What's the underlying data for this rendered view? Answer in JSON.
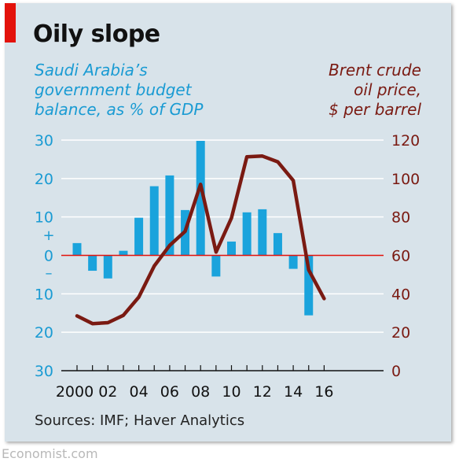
{
  "title": "Oily slope",
  "left_axis_label": "Saudi Arabia’s\ngovernment budget\nbalance, as % of GDP",
  "right_axis_label": "Brent crude\noil price,\n$ per barrel",
  "source": "Sources: IMF; Haver Analytics",
  "footer": "Economist.com",
  "colors": {
    "bar": "#1aa3dc",
    "line": "#7a1a12",
    "left_axis": "#1a9bd3",
    "right_axis": "#7a1a12",
    "zero_line": "#e3120b",
    "grid": "#ffffff",
    "background": "#d8e3ea"
  },
  "chart_data": {
    "type": "bar",
    "categories": [
      "2000",
      "2001",
      "2002",
      "2003",
      "2004",
      "2005",
      "2006",
      "2007",
      "2008",
      "2009",
      "2010",
      "2011",
      "2012",
      "2013",
      "2014",
      "2015",
      "2016"
    ],
    "x_tick_labels": [
      "2000",
      "02",
      "04",
      "06",
      "08",
      "10",
      "12",
      "14",
      "16"
    ],
    "series": [
      {
        "type": "bar",
        "axis": "left",
        "values": [
          3.2,
          -4,
          -6,
          1.2,
          9.8,
          18,
          20.8,
          11.8,
          29.8,
          -5.5,
          3.6,
          11.2,
          12,
          5.8,
          -3.5,
          -15.6,
          0
        ]
      },
      {
        "type": "line",
        "axis": "right",
        "x": [
          2000,
          2001,
          2002,
          2003,
          2004,
          2005,
          2006,
          2007,
          2008,
          2009,
          2010,
          2011,
          2012,
          2013,
          2014,
          2015,
          2016
        ],
        "values": [
          28.5,
          24.5,
          25,
          28.8,
          38.3,
          54.5,
          65.2,
          72.5,
          97,
          61.7,
          79.5,
          111.3,
          111.7,
          108.7,
          99,
          52.4,
          37.5
        ]
      }
    ],
    "left_axis": {
      "ticks": [
        30,
        20,
        10,
        0,
        10,
        20,
        30
      ],
      "ylim": [
        -30,
        30
      ],
      "sign_labels": [
        "+",
        "–"
      ]
    },
    "right_axis": {
      "ticks": [
        120,
        100,
        80,
        60,
        40,
        20,
        0
      ],
      "ylim": [
        0,
        120
      ]
    },
    "grid": true
  }
}
